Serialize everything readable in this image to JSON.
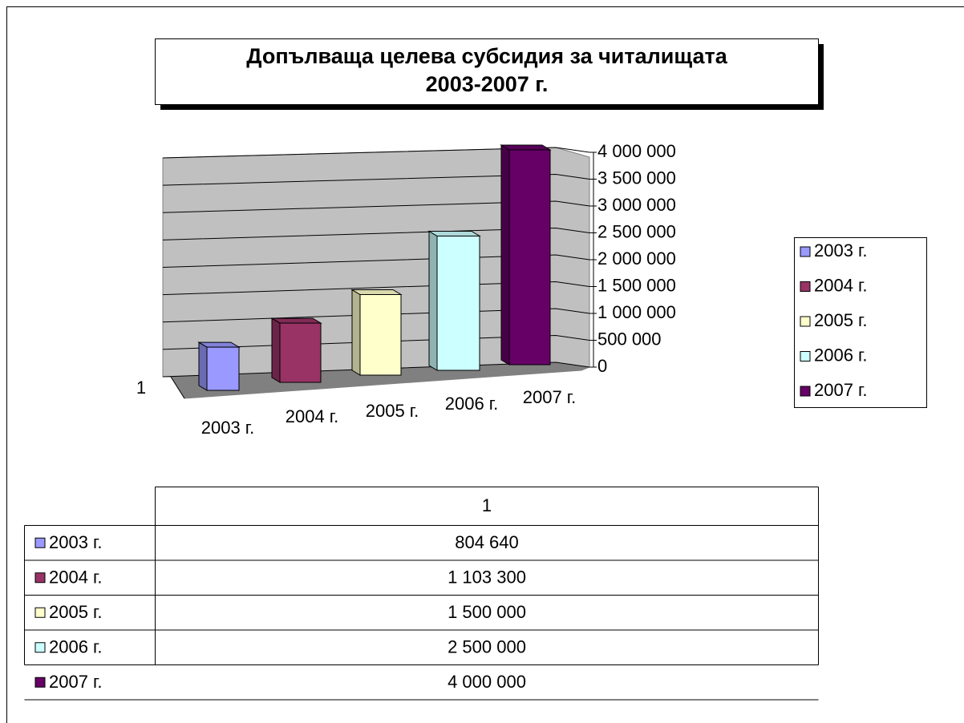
{
  "chart_data": {
    "type": "bar",
    "title": [
      "Допълваща целева субсидия за читалищата",
      "2003-2007 г."
    ],
    "categories": [
      "1"
    ],
    "series": [
      {
        "name": "2003 г.",
        "color": "#9999ff",
        "values": [
          804640
        ],
        "value_labels": [
          "804 640"
        ]
      },
      {
        "name": "2004 г.",
        "color": "#993366",
        "values": [
          1103300
        ],
        "value_labels": [
          "1 103 300"
        ]
      },
      {
        "name": "2005 г.",
        "color": "#ffffcc",
        "values": [
          1500000
        ],
        "value_labels": [
          "1 500 000"
        ]
      },
      {
        "name": "2006 г.",
        "color": "#ccffff",
        "values": [
          2500000
        ],
        "value_labels": [
          "2 500 000"
        ]
      },
      {
        "name": "2007 г.",
        "color": "#660066",
        "values": [
          4000000
        ],
        "value_labels": [
          "4 000 000"
        ]
      }
    ],
    "ylim": [
      0,
      4000000
    ],
    "yticks": [
      0,
      {
        "value": 500000,
        "label": "500 000"
      },
      {
        "value": 1000000,
        "label": "1 000 000"
      },
      {
        "value": 1500000,
        "label": "1 500 000"
      },
      {
        "value": 2000000,
        "label": "2 000 000"
      },
      {
        "value": 2500000,
        "label": "2 500 000"
      },
      {
        "value": 3000000,
        "label": "3 000 000"
      },
      {
        "value": 3500000,
        "label": "3 500 000"
      },
      {
        "value": 4000000,
        "label": "4 000 000"
      }
    ],
    "grid": true,
    "legend": "right",
    "data_table": true
  }
}
